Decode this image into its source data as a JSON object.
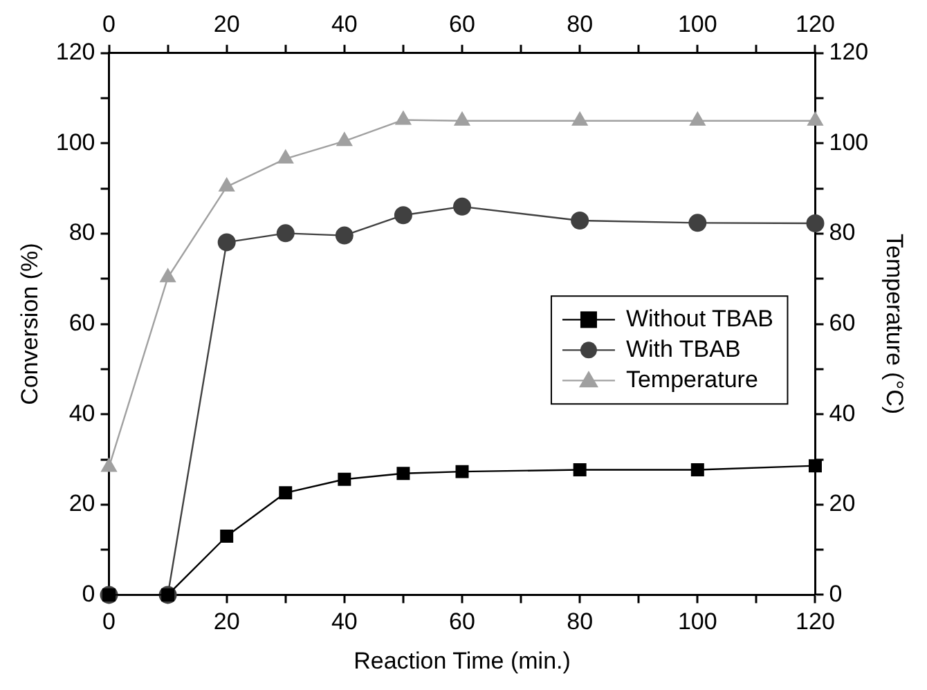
{
  "chart_data": {
    "type": "line",
    "xlabel": "Reaction Time (min.)",
    "ylabel": "Conversion (%)",
    "y2label": "Temperature (°C)",
    "x": [
      0,
      10,
      20,
      30,
      40,
      50,
      60,
      80,
      100,
      120
    ],
    "series": [
      {
        "name": "Without TBAB",
        "color": "#000000",
        "marker": "square",
        "values": [
          0,
          0,
          13,
          22.6,
          25.6,
          26.9,
          27.3,
          27.7,
          27.7,
          28.6
        ]
      },
      {
        "name": "With TBAB",
        "color": "#404040",
        "marker": "circle",
        "values": [
          0,
          0,
          78.1,
          80.1,
          79.6,
          84.1,
          86,
          82.9,
          82.4,
          82.3
        ]
      },
      {
        "name": "Temperature",
        "color": "#a0a0a0",
        "marker": "triangle",
        "axis": "y2",
        "values": [
          28.3,
          70.3,
          90.4,
          96.6,
          100.5,
          105.2,
          105,
          105,
          105,
          105
        ]
      }
    ],
    "xlim": [
      0,
      120
    ],
    "xticks": [
      0,
      {
        "value": 10,
        "label": null
      },
      20,
      {
        "value": 30,
        "label": null
      },
      40,
      {
        "value": 50,
        "label": null
      },
      60,
      {
        "value": 70,
        "label": null
      },
      80,
      {
        "value": 90,
        "label": null
      },
      100,
      {
        "value": 110,
        "label": null
      },
      120
    ],
    "x2lim": [
      0,
      120
    ],
    "x2ticks": [
      0,
      {
        "value": 10,
        "label": null
      },
      20,
      {
        "value": 30,
        "label": null
      },
      40,
      {
        "value": 50,
        "label": null
      },
      60,
      {
        "value": 70,
        "label": null
      },
      80,
      {
        "value": 90,
        "label": null
      },
      100,
      {
        "value": 110,
        "label": null
      },
      120
    ],
    "ylim": [
      0,
      120
    ],
    "yticks": [
      0,
      {
        "value": 10,
        "label": null
      },
      20,
      {
        "value": 30,
        "label": null
      },
      40,
      {
        "value": 50,
        "label": null
      },
      60,
      {
        "value": 70,
        "label": null
      },
      80,
      {
        "value": 90,
        "label": null
      },
      100,
      {
        "value": 110,
        "label": null
      },
      120
    ],
    "y2lim": [
      0,
      120
    ],
    "y2ticks": [
      0,
      {
        "value": 10,
        "label": null
      },
      20,
      {
        "value": 30,
        "label": null
      },
      40,
      {
        "value": 50,
        "label": null
      },
      60,
      {
        "value": 70,
        "label": null
      },
      80,
      {
        "value": 90,
        "label": null
      },
      100,
      {
        "value": 110,
        "label": null
      },
      120
    ],
    "grid": false,
    "legend": "right",
    "line_style": "solid"
  }
}
